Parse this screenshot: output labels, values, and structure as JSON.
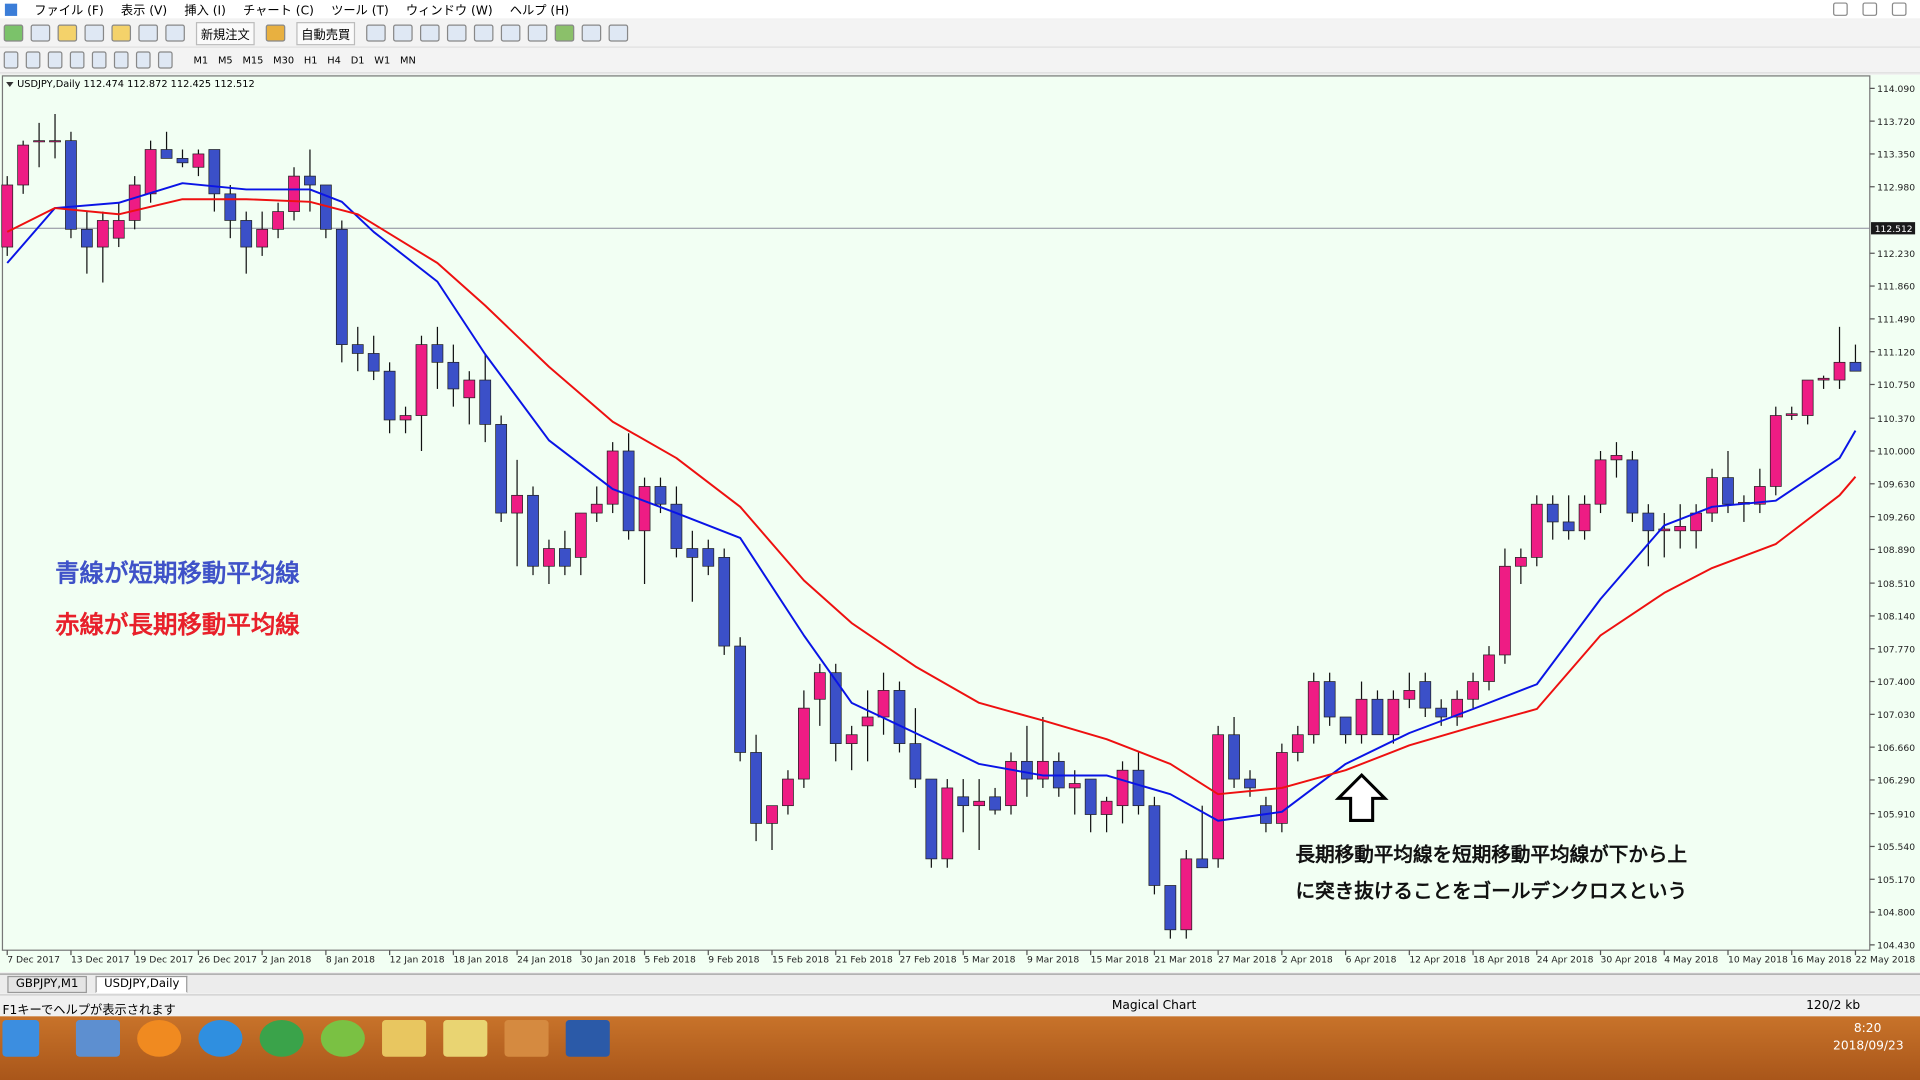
{
  "menu": [
    "ファイル (F)",
    "表示 (V)",
    "挿入 (I)",
    "チャート (C)",
    "ツール (T)",
    "ウィンドウ (W)",
    "ヘルプ (H)"
  ],
  "toolbar": {
    "new_order": "新規注文",
    "auto_trade": "自動売買",
    "timeframes": [
      "M1",
      "M5",
      "M15",
      "M30",
      "H1",
      "H4",
      "D1",
      "W1",
      "MN"
    ]
  },
  "chart_header": "USDJPY,Daily  112.474 112.872 112.425 112.512",
  "chart_data": {
    "type": "candlestick",
    "ohlc": [
      [
        112.3,
        113.1,
        112.2,
        113.0
      ],
      [
        113.0,
        113.5,
        112.9,
        113.45
      ],
      [
        113.5,
        113.7,
        113.2,
        113.5
      ],
      [
        113.5,
        113.8,
        113.3,
        113.5
      ],
      [
        113.5,
        113.6,
        112.4,
        112.5
      ],
      [
        112.5,
        112.7,
        112.0,
        112.3
      ],
      [
        112.3,
        112.7,
        111.9,
        112.6
      ],
      [
        112.4,
        112.8,
        112.3,
        112.6
      ],
      [
        112.6,
        113.1,
        112.5,
        113.0
      ],
      [
        112.9,
        113.5,
        112.8,
        113.4
      ],
      [
        113.4,
        113.6,
        113.3,
        113.3
      ],
      [
        113.3,
        113.4,
        113.2,
        113.25
      ],
      [
        113.2,
        113.4,
        113.1,
        113.35
      ],
      [
        113.4,
        113.4,
        112.7,
        112.9
      ],
      [
        112.9,
        113.0,
        112.4,
        112.6
      ],
      [
        112.6,
        112.7,
        112.0,
        112.3
      ],
      [
        112.3,
        112.7,
        112.2,
        112.5
      ],
      [
        112.5,
        112.8,
        112.4,
        112.7
      ],
      [
        112.7,
        113.2,
        112.6,
        113.1
      ],
      [
        113.1,
        113.4,
        112.7,
        113.0
      ],
      [
        113.0,
        113.0,
        112.4,
        112.5
      ],
      [
        112.5,
        112.6,
        111.0,
        111.2
      ],
      [
        111.2,
        111.4,
        110.9,
        111.1
      ],
      [
        111.1,
        111.3,
        110.8,
        110.9
      ],
      [
        110.9,
        111.0,
        110.2,
        110.35
      ],
      [
        110.35,
        110.5,
        110.2,
        110.4
      ],
      [
        110.4,
        111.3,
        110.0,
        111.2
      ],
      [
        111.2,
        111.4,
        110.7,
        111.0
      ],
      [
        111.0,
        111.2,
        110.5,
        110.7
      ],
      [
        110.6,
        110.9,
        110.3,
        110.8
      ],
      [
        110.8,
        111.1,
        110.1,
        110.3
      ],
      [
        110.3,
        110.4,
        109.2,
        109.3
      ],
      [
        109.3,
        109.9,
        108.7,
        109.5
      ],
      [
        109.5,
        109.6,
        108.6,
        108.7
      ],
      [
        108.7,
        109.0,
        108.5,
        108.9
      ],
      [
        108.9,
        109.1,
        108.6,
        108.7
      ],
      [
        108.8,
        109.3,
        108.6,
        109.3
      ],
      [
        109.3,
        109.6,
        109.2,
        109.4
      ],
      [
        109.4,
        110.1,
        109.3,
        110.0
      ],
      [
        110.0,
        110.2,
        109.0,
        109.1
      ],
      [
        109.1,
        109.7,
        108.5,
        109.6
      ],
      [
        109.6,
        109.7,
        109.3,
        109.4
      ],
      [
        109.4,
        109.6,
        108.8,
        108.9
      ],
      [
        108.9,
        109.1,
        108.3,
        108.8
      ],
      [
        108.9,
        109.0,
        108.6,
        108.7
      ],
      [
        108.8,
        108.9,
        107.7,
        107.8
      ],
      [
        107.8,
        107.9,
        106.5,
        106.6
      ],
      [
        106.6,
        106.8,
        105.6,
        105.8
      ],
      [
        105.8,
        106.0,
        105.5,
        106.0
      ],
      [
        106.0,
        106.4,
        105.9,
        106.3
      ],
      [
        106.3,
        107.3,
        106.2,
        107.1
      ],
      [
        107.2,
        107.6,
        106.9,
        107.5
      ],
      [
        107.5,
        107.6,
        106.5,
        106.7
      ],
      [
        106.7,
        106.9,
        106.4,
        106.8
      ],
      [
        106.9,
        107.3,
        106.5,
        107.0
      ],
      [
        107.0,
        107.5,
        106.8,
        107.3
      ],
      [
        107.3,
        107.4,
        106.6,
        106.7
      ],
      [
        106.7,
        107.1,
        106.2,
        106.3
      ],
      [
        106.3,
        106.3,
        105.3,
        105.4
      ],
      [
        105.4,
        106.3,
        105.3,
        106.2
      ],
      [
        106.1,
        106.3,
        105.7,
        106.0
      ],
      [
        106.0,
        106.3,
        105.5,
        106.05
      ],
      [
        106.1,
        106.2,
        105.9,
        105.95
      ],
      [
        106.0,
        106.6,
        105.9,
        106.5
      ],
      [
        106.5,
        106.9,
        106.1,
        106.3
      ],
      [
        106.3,
        107.0,
        106.2,
        106.5
      ],
      [
        106.5,
        106.6,
        106.1,
        106.2
      ],
      [
        106.2,
        106.4,
        105.9,
        106.25
      ],
      [
        106.3,
        106.3,
        105.7,
        105.9
      ],
      [
        105.9,
        106.1,
        105.7,
        106.05
      ],
      [
        106.0,
        106.5,
        105.8,
        106.4
      ],
      [
        106.4,
        106.6,
        105.9,
        106.0
      ],
      [
        106.0,
        106.1,
        105.0,
        105.1
      ],
      [
        105.1,
        105.1,
        104.5,
        104.6
      ],
      [
        104.6,
        105.5,
        104.5,
        105.4
      ],
      [
        105.4,
        106.0,
        105.3,
        105.3
      ],
      [
        105.4,
        106.9,
        105.3,
        106.8
      ],
      [
        106.8,
        107.0,
        106.2,
        106.3
      ],
      [
        106.3,
        106.4,
        106.1,
        106.2
      ],
      [
        106.0,
        106.1,
        105.7,
        105.8
      ],
      [
        105.8,
        106.7,
        105.7,
        106.6
      ],
      [
        106.6,
        106.9,
        106.5,
        106.8
      ],
      [
        106.8,
        107.5,
        106.7,
        107.4
      ],
      [
        107.4,
        107.5,
        106.9,
        107.0
      ],
      [
        107.0,
        107.0,
        106.7,
        106.8
      ],
      [
        106.8,
        107.4,
        106.7,
        107.2
      ],
      [
        107.2,
        107.3,
        106.8,
        106.8
      ],
      [
        106.8,
        107.3,
        106.7,
        107.2
      ],
      [
        107.2,
        107.5,
        107.1,
        107.3
      ],
      [
        107.4,
        107.5,
        107.0,
        107.1
      ],
      [
        107.1,
        107.2,
        106.9,
        107.0
      ],
      [
        107.0,
        107.3,
        106.9,
        107.2
      ],
      [
        107.2,
        107.5,
        107.1,
        107.4
      ],
      [
        107.4,
        107.8,
        107.3,
        107.7
      ],
      [
        107.7,
        108.9,
        107.6,
        108.7
      ],
      [
        108.7,
        108.9,
        108.5,
        108.8
      ],
      [
        108.8,
        109.5,
        108.7,
        109.4
      ],
      [
        109.4,
        109.5,
        109.0,
        109.2
      ],
      [
        109.2,
        109.5,
        109.0,
        109.1
      ],
      [
        109.1,
        109.5,
        109.0,
        109.4
      ],
      [
        109.4,
        110.0,
        109.3,
        109.9
      ],
      [
        109.9,
        110.1,
        109.7,
        109.95
      ],
      [
        109.9,
        110.0,
        109.2,
        109.3
      ],
      [
        109.3,
        109.4,
        108.7,
        109.1
      ],
      [
        109.1,
        109.3,
        108.8,
        109.12
      ],
      [
        109.1,
        109.4,
        108.9,
        109.15
      ],
      [
        109.1,
        109.4,
        108.9,
        109.3
      ],
      [
        109.3,
        109.8,
        109.2,
        109.7
      ],
      [
        109.7,
        110.0,
        109.3,
        109.4
      ],
      [
        109.4,
        109.5,
        109.2,
        109.42
      ],
      [
        109.4,
        109.8,
        109.3,
        109.6
      ],
      [
        109.6,
        110.5,
        109.5,
        110.4
      ],
      [
        110.4,
        110.5,
        110.35,
        110.42
      ],
      [
        110.4,
        110.8,
        110.3,
        110.8
      ],
      [
        110.8,
        110.85,
        110.7,
        110.82
      ],
      [
        110.8,
        111.4,
        110.7,
        111.0
      ],
      [
        111.0,
        111.2,
        110.9,
        110.9
      ]
    ],
    "up_color": "#ee1c84",
    "down_color": "#3b50c8",
    "moving_averages": [
      {
        "color": "#0a14e6",
        "x": [
          0,
          3,
          7,
          11,
          15,
          19,
          21,
          23,
          27,
          30,
          34,
          38,
          42,
          46,
          50,
          53,
          57,
          61,
          65,
          69,
          73,
          76,
          80,
          84,
          88,
          92,
          96,
          100,
          104,
          107,
          111,
          115,
          116
        ],
        "values": [
          112.12,
          112.74,
          112.8,
          113.02,
          112.95,
          112.95,
          112.81,
          112.47,
          111.91,
          111.09,
          110.12,
          109.57,
          109.3,
          109.02,
          107.92,
          107.16,
          106.82,
          106.47,
          106.34,
          106.34,
          106.13,
          105.83,
          105.93,
          106.47,
          106.82,
          107.09,
          107.37,
          108.33,
          109.16,
          109.37,
          109.44,
          109.92,
          110.23
        ]
      },
      {
        "color": "#ee1010",
        "x": [
          0,
          3,
          7,
          11,
          15,
          19,
          22,
          27,
          30,
          34,
          38,
          42,
          46,
          50,
          53,
          57,
          61,
          65,
          69,
          73,
          76,
          80,
          84,
          88,
          92,
          96,
          100,
          104,
          107,
          111,
          115,
          116
        ],
        "values": [
          112.47,
          112.74,
          112.67,
          112.84,
          112.84,
          112.81,
          112.67,
          112.12,
          111.64,
          110.95,
          110.33,
          109.92,
          109.37,
          108.54,
          108.06,
          107.57,
          107.16,
          106.96,
          106.75,
          106.47,
          106.13,
          106.2,
          106.4,
          106.68,
          106.89,
          107.09,
          107.92,
          108.4,
          108.68,
          108.95,
          109.5,
          109.71
        ]
      }
    ],
    "current_price": {
      "value": 112.512,
      "label": "112.512"
    },
    "xlim": [
      -0.3,
      116.9
    ],
    "ylim": [
      104.37,
      114.23
    ],
    "yticks": [
      {
        "value": 114.09,
        "label": "114.090"
      },
      {
        "value": 113.72,
        "label": "113.720"
      },
      {
        "value": 113.35,
        "label": "113.350"
      },
      {
        "value": 112.98,
        "label": "112.980"
      },
      {
        "value": 112.23,
        "label": "112.230"
      },
      {
        "value": 111.86,
        "label": "111.860"
      },
      {
        "value": 111.49,
        "label": "111.490"
      },
      {
        "value": 111.12,
        "label": "111.120"
      },
      {
        "value": 110.75,
        "label": "110.750"
      },
      {
        "value": 110.37,
        "label": "110.370"
      },
      {
        "value": 110.0,
        "label": "110.000"
      },
      {
        "value": 109.63,
        "label": "109.630"
      },
      {
        "value": 109.26,
        "label": "109.260"
      },
      {
        "value": 108.89,
        "label": "108.890"
      },
      {
        "value": 108.51,
        "label": "108.510"
      },
      {
        "value": 108.14,
        "label": "108.140"
      },
      {
        "value": 107.77,
        "label": "107.770"
      },
      {
        "value": 107.4,
        "label": "107.400"
      },
      {
        "value": 107.03,
        "label": "107.030"
      },
      {
        "value": 106.66,
        "label": "106.660"
      },
      {
        "value": 106.29,
        "label": "106.290"
      },
      {
        "value": 105.91,
        "label": "105.910"
      },
      {
        "value": 105.54,
        "label": "105.540"
      },
      {
        "value": 105.17,
        "label": "105.170"
      },
      {
        "value": 104.8,
        "label": "104.800"
      },
      {
        "value": 104.43,
        "label": "104.430"
      }
    ],
    "xticks": [
      {
        "value": 0,
        "label": "7 Dec 2017"
      },
      {
        "value": 4,
        "label": "13 Dec 2017"
      },
      {
        "value": 8,
        "label": "19 Dec 2017"
      },
      {
        "value": 12,
        "label": "26 Dec 2017"
      },
      {
        "value": 16,
        "label": "2 Jan 2018"
      },
      {
        "value": 20,
        "label": "8 Jan 2018"
      },
      {
        "value": 24,
        "label": "12 Jan 2018"
      },
      {
        "value": 28,
        "label": "18 Jan 2018"
      },
      {
        "value": 32,
        "label": "24 Jan 2018"
      },
      {
        "value": 36,
        "label": "30 Jan 2018"
      },
      {
        "value": 40,
        "label": "5 Feb 2018"
      },
      {
        "value": 44,
        "label": "9 Feb 2018"
      },
      {
        "value": 48,
        "label": "15 Feb 2018"
      },
      {
        "value": 52,
        "label": "21 Feb 2018"
      },
      {
        "value": 56,
        "label": "27 Feb 2018"
      },
      {
        "value": 60,
        "label": "5 Mar 2018"
      },
      {
        "value": 64,
        "label": "9 Mar 2018"
      },
      {
        "value": 68,
        "label": "15 Mar 2018"
      },
      {
        "value": 72,
        "label": "21 Mar 2018"
      },
      {
        "value": 76,
        "label": "27 Mar 2018"
      },
      {
        "value": 80,
        "label": "2 Apr 2018"
      },
      {
        "value": 84,
        "label": "6 Apr 2018"
      },
      {
        "value": 88,
        "label": "12 Apr 2018"
      },
      {
        "value": 92,
        "label": "18 Apr 2018"
      },
      {
        "value": 96,
        "label": "24 Apr 2018"
      },
      {
        "value": 100,
        "label": "30 Apr 2018"
      },
      {
        "value": 104,
        "label": "4 May 2018"
      },
      {
        "value": 108,
        "label": "10 May 2018"
      },
      {
        "value": 112,
        "label": "16 May 2018"
      },
      {
        "value": 116,
        "label": "22 May 2018"
      }
    ]
  },
  "annotations": {
    "blue_note": "青線が短期移動平均線",
    "red_note": "赤線が長期移動平均線",
    "cross_line1": "長期移動平均線を短期移動平均線が下から上",
    "cross_line2": "に突き抜けることをゴールデンクロスという"
  },
  "tabs": [
    "GBPJPY,M1",
    "USDJPY,Daily"
  ],
  "status": {
    "help": "F1キーでヘルプが表示されます",
    "profile": "Magical Chart",
    "traffic": "120/2 kb"
  },
  "taskbar": {
    "time": "8:20",
    "date": "2018/09/23"
  }
}
